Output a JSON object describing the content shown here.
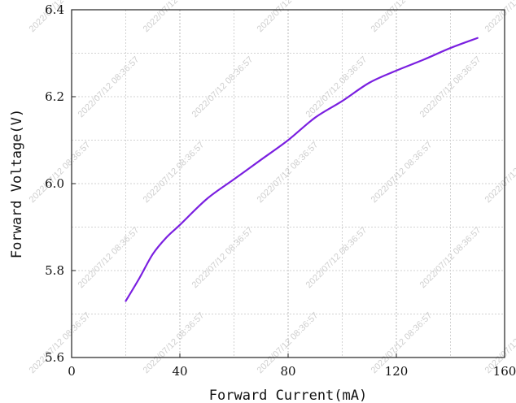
{
  "chart_data": {
    "type": "line",
    "title": "",
    "xlabel": "Forward Current(mA)",
    "ylabel": "Forward Voltage(V)",
    "xlim": [
      0,
      160
    ],
    "ylim": [
      5.6,
      6.4
    ],
    "x_ticks": [
      "0",
      "40",
      "80",
      "120",
      "160"
    ],
    "y_ticks": [
      "5.6",
      "5.8",
      "6.0",
      "6.2",
      "6.4"
    ],
    "grid": true,
    "grid_style": "dotted",
    "series": [
      {
        "name": "",
        "color": "#7a1fe0",
        "x": [
          20,
          25,
          30,
          35,
          40,
          50,
          60,
          70,
          80,
          90,
          100,
          110,
          120,
          130,
          140,
          150
        ],
        "y": [
          5.73,
          5.782,
          5.838,
          5.876,
          5.905,
          5.965,
          6.01,
          6.055,
          6.1,
          6.152,
          6.19,
          6.232,
          6.26,
          6.285,
          6.312,
          6.335
        ]
      }
    ],
    "watermark": "2022/07/12 08:36:57"
  }
}
